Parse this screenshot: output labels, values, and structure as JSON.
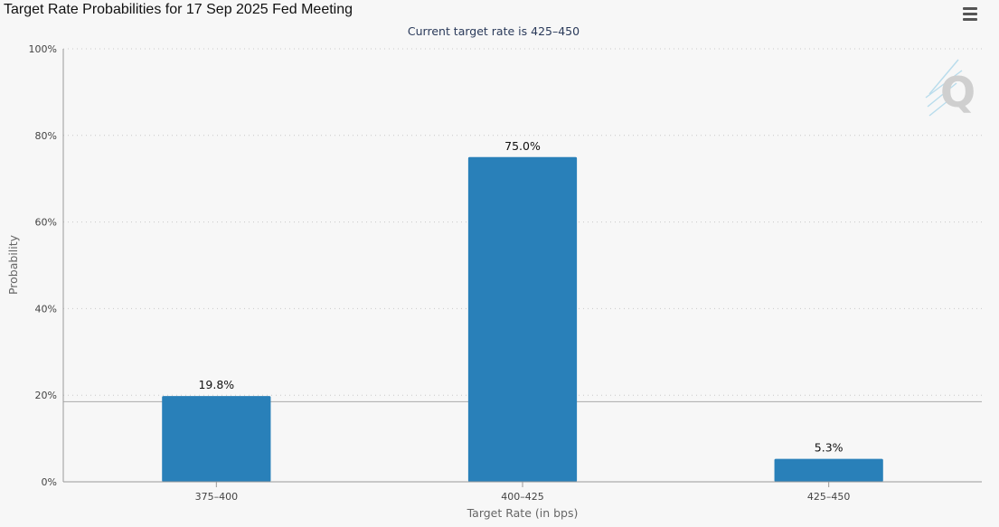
{
  "title": "Target Rate Probabilities for 17 Sep 2025 Fed Meeting",
  "subtitle": "Current target rate is 425–450",
  "menu_icon": "hamburger-menu-icon",
  "watermark_icon": "quikstrike-q-logo-icon",
  "colors": {
    "bar": "#2980b9",
    "grid": "#c8c8c8",
    "axis": "#999999",
    "background": "#f7f7f7",
    "reference_line": "#aaaaaa"
  },
  "chart_data": {
    "type": "bar",
    "title": "Target Rate Probabilities for 17 Sep 2025 Fed Meeting",
    "subtitle": "Current target rate is 425–450",
    "xlabel": "Target Rate (in bps)",
    "ylabel": "Probability",
    "categories": [
      "375-400",
      "400-425",
      "425-450"
    ],
    "values": [
      19.8,
      75.0,
      5.3
    ],
    "data_labels": [
      "19.8%",
      "75.0%",
      "5.3%"
    ],
    "ylim": [
      0,
      100
    ],
    "yticks": [
      0,
      20,
      40,
      60,
      80,
      100
    ],
    "ytick_labels": [
      "0%",
      "20%",
      "40%",
      "60%",
      "80%",
      "100%"
    ],
    "reference_line_value": 18.5,
    "grid": true,
    "legend": "none"
  }
}
